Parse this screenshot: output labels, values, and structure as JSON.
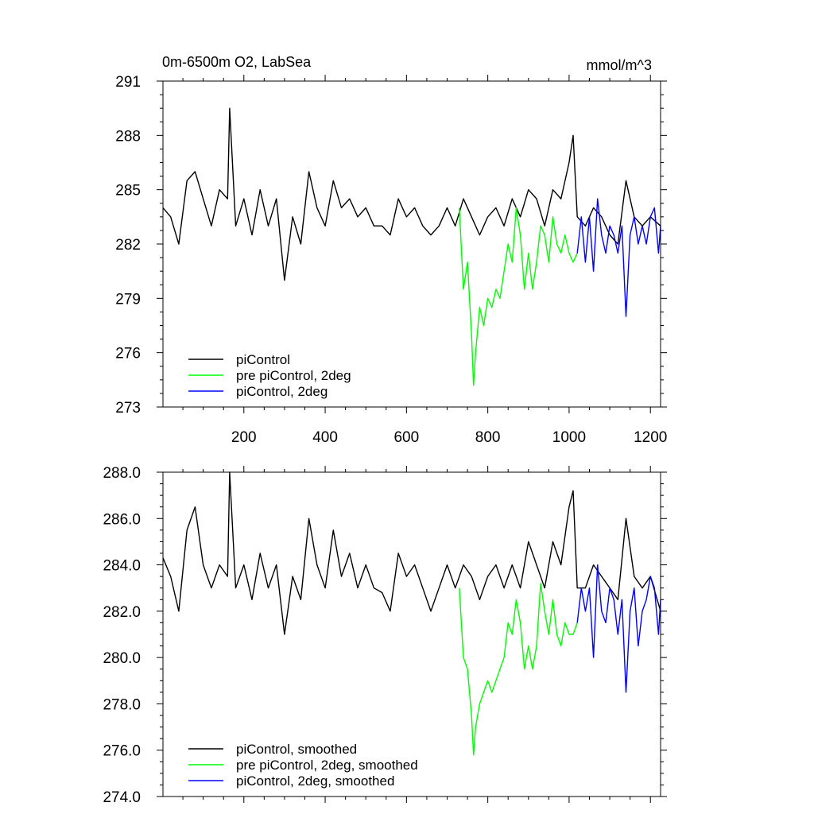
{
  "figure": {
    "title": "0m-6500m O2, LabSea",
    "units": "mmol/m^3"
  },
  "colors": {
    "picontrol": "#000000",
    "pre_picontrol_2deg": "#00ff00",
    "picontrol_2deg": "#0000ff"
  },
  "chart_data": [
    {
      "type": "line",
      "title": "0m-6500m O2, LabSea",
      "units_label": "mmol/m^3",
      "xlabel": "",
      "ylabel": "",
      "xlim": [
        1,
        1225
      ],
      "ylim": [
        273,
        291
      ],
      "x_ticks": [
        200,
        400,
        600,
        800,
        1000,
        1200
      ],
      "x_tick_labels": [
        "200",
        "400",
        "600",
        "800",
        "1000",
        "1200"
      ],
      "y_ticks": [
        273,
        276,
        279,
        282,
        285,
        288,
        291
      ],
      "y_tick_labels": [
        "273",
        "276",
        "279",
        "282",
        "285",
        "288",
        "291"
      ],
      "legend_position": "bottom-left",
      "series": [
        {
          "name": "piControl",
          "color": "#000000",
          "x": [
            1,
            20,
            40,
            60,
            80,
            100,
            120,
            140,
            160,
            165,
            180,
            200,
            220,
            240,
            260,
            280,
            300,
            320,
            340,
            360,
            380,
            400,
            420,
            440,
            460,
            480,
            500,
            520,
            540,
            560,
            580,
            600,
            620,
            640,
            660,
            680,
            700,
            720,
            740,
            760,
            780,
            800,
            820,
            840,
            860,
            880,
            900,
            920,
            940,
            960,
            980,
            1000,
            1010,
            1020,
            1040,
            1060,
            1080,
            1100,
            1120,
            1140,
            1160,
            1180,
            1200,
            1225
          ],
          "values": [
            284.0,
            283.5,
            282.0,
            285.5,
            286.0,
            284.5,
            283.0,
            285.0,
            284.5,
            289.5,
            283.0,
            284.5,
            282.5,
            285.0,
            283.0,
            284.5,
            280.0,
            283.5,
            282.0,
            286.0,
            284.0,
            283.0,
            285.5,
            284.0,
            284.5,
            283.5,
            284.0,
            283.0,
            283.0,
            282.5,
            284.5,
            283.5,
            284.0,
            283.0,
            282.5,
            283.0,
            284.0,
            283.0,
            284.5,
            283.5,
            282.5,
            283.5,
            284.0,
            283.0,
            284.5,
            283.5,
            285.0,
            284.5,
            283.0,
            285.0,
            284.5,
            286.5,
            288.0,
            283.5,
            283.0,
            284.0,
            283.5,
            282.5,
            282.0,
            285.5,
            283.5,
            283.0,
            283.5,
            283.0
          ]
        },
        {
          "name": "pre piControl, 2deg",
          "color": "#00ff00",
          "x": [
            730,
            740,
            750,
            760,
            765,
            770,
            780,
            790,
            800,
            810,
            820,
            830,
            840,
            850,
            860,
            870,
            880,
            890,
            900,
            910,
            920,
            930,
            940,
            950,
            960,
            970,
            980,
            990,
            1000,
            1010,
            1020
          ],
          "values": [
            284.0,
            279.5,
            281.0,
            277.0,
            274.2,
            276.0,
            278.5,
            277.5,
            279.0,
            278.5,
            279.5,
            279.0,
            280.5,
            282.0,
            281.0,
            284.0,
            282.5,
            279.5,
            281.5,
            279.5,
            281.0,
            283.0,
            282.5,
            281.0,
            283.5,
            282.0,
            281.5,
            282.5,
            281.5,
            281.0,
            281.5
          ]
        },
        {
          "name": "piControl, 2deg",
          "color": "#0000ff",
          "x": [
            1020,
            1030,
            1040,
            1050,
            1060,
            1070,
            1080,
            1090,
            1100,
            1110,
            1120,
            1130,
            1140,
            1150,
            1160,
            1170,
            1180,
            1190,
            1200,
            1210,
            1220,
            1225
          ],
          "values": [
            281.5,
            283.5,
            281.0,
            283.5,
            280.5,
            284.5,
            282.5,
            281.5,
            283.0,
            282.5,
            281.5,
            283.0,
            278.0,
            282.5,
            283.5,
            282.0,
            283.0,
            282.0,
            283.5,
            284.0,
            281.5,
            283.0
          ]
        }
      ]
    },
    {
      "type": "line",
      "title": "",
      "xlabel": "",
      "ylabel": "",
      "xlim": [
        1,
        1225
      ],
      "ylim": [
        274,
        288
      ],
      "x_ticks": [
        200,
        400,
        600,
        800,
        1000,
        1200
      ],
      "x_tick_labels": [],
      "y_ticks": [
        274,
        276,
        278,
        280,
        282,
        284,
        286,
        288
      ],
      "y_tick_labels": [
        "274.0",
        "276.0",
        "278.0",
        "280.0",
        "282.0",
        "284.0",
        "286.0",
        "288.0"
      ],
      "legend_position": "bottom-left",
      "series": [
        {
          "name": "piControl, smoothed",
          "color": "#000000",
          "x": [
            1,
            20,
            40,
            60,
            80,
            100,
            120,
            140,
            160,
            165,
            180,
            200,
            220,
            240,
            260,
            280,
            300,
            320,
            340,
            360,
            380,
            400,
            420,
            440,
            460,
            480,
            500,
            520,
            540,
            560,
            580,
            600,
            620,
            640,
            660,
            680,
            700,
            720,
            740,
            760,
            780,
            800,
            820,
            840,
            860,
            880,
            900,
            920,
            940,
            960,
            980,
            1000,
            1010,
            1020,
            1040,
            1060,
            1080,
            1100,
            1120,
            1140,
            1160,
            1180,
            1200,
            1225
          ],
          "values": [
            284.3,
            283.5,
            282.0,
            285.5,
            286.5,
            284.0,
            283.0,
            284.0,
            283.5,
            288.0,
            283.0,
            284.0,
            282.5,
            284.5,
            283.0,
            284.0,
            281.0,
            283.5,
            282.5,
            286.0,
            284.0,
            283.0,
            285.5,
            283.5,
            284.5,
            283.0,
            284.0,
            283.0,
            282.8,
            282.0,
            284.5,
            283.5,
            284.0,
            283.0,
            282.0,
            283.0,
            284.0,
            283.0,
            284.0,
            283.5,
            282.5,
            283.5,
            284.0,
            283.0,
            284.0,
            283.0,
            285.0,
            284.0,
            283.0,
            285.0,
            284.0,
            286.5,
            287.2,
            283.0,
            283.0,
            284.0,
            283.5,
            283.0,
            282.5,
            286.0,
            283.5,
            283.0,
            283.5,
            282.0
          ]
        },
        {
          "name": "pre piControl, 2deg, smoothed",
          "color": "#00ff00",
          "x": [
            730,
            740,
            750,
            760,
            765,
            770,
            780,
            790,
            800,
            810,
            820,
            830,
            840,
            850,
            860,
            870,
            880,
            890,
            900,
            910,
            920,
            930,
            940,
            950,
            960,
            970,
            980,
            990,
            1000,
            1010,
            1020
          ],
          "values": [
            283.0,
            280.0,
            279.5,
            277.5,
            275.8,
            277.0,
            278.0,
            278.5,
            279.0,
            278.5,
            279.0,
            279.5,
            280.0,
            281.5,
            281.0,
            282.5,
            281.5,
            279.5,
            280.5,
            279.5,
            280.5,
            283.2,
            282.0,
            281.0,
            282.5,
            281.0,
            280.5,
            281.5,
            281.0,
            281.0,
            281.5
          ]
        },
        {
          "name": "piControl, 2deg, smoothed",
          "color": "#0000ff",
          "x": [
            1020,
            1030,
            1040,
            1050,
            1060,
            1070,
            1080,
            1090,
            1100,
            1110,
            1120,
            1130,
            1140,
            1150,
            1160,
            1170,
            1180,
            1190,
            1200,
            1210,
            1220,
            1225
          ],
          "values": [
            281.5,
            283.0,
            282.0,
            283.0,
            280.0,
            284.0,
            282.0,
            281.5,
            283.0,
            282.5,
            281.0,
            282.5,
            278.5,
            282.0,
            283.0,
            280.5,
            282.0,
            282.5,
            283.5,
            283.0,
            281.0,
            282.5
          ]
        }
      ]
    }
  ]
}
